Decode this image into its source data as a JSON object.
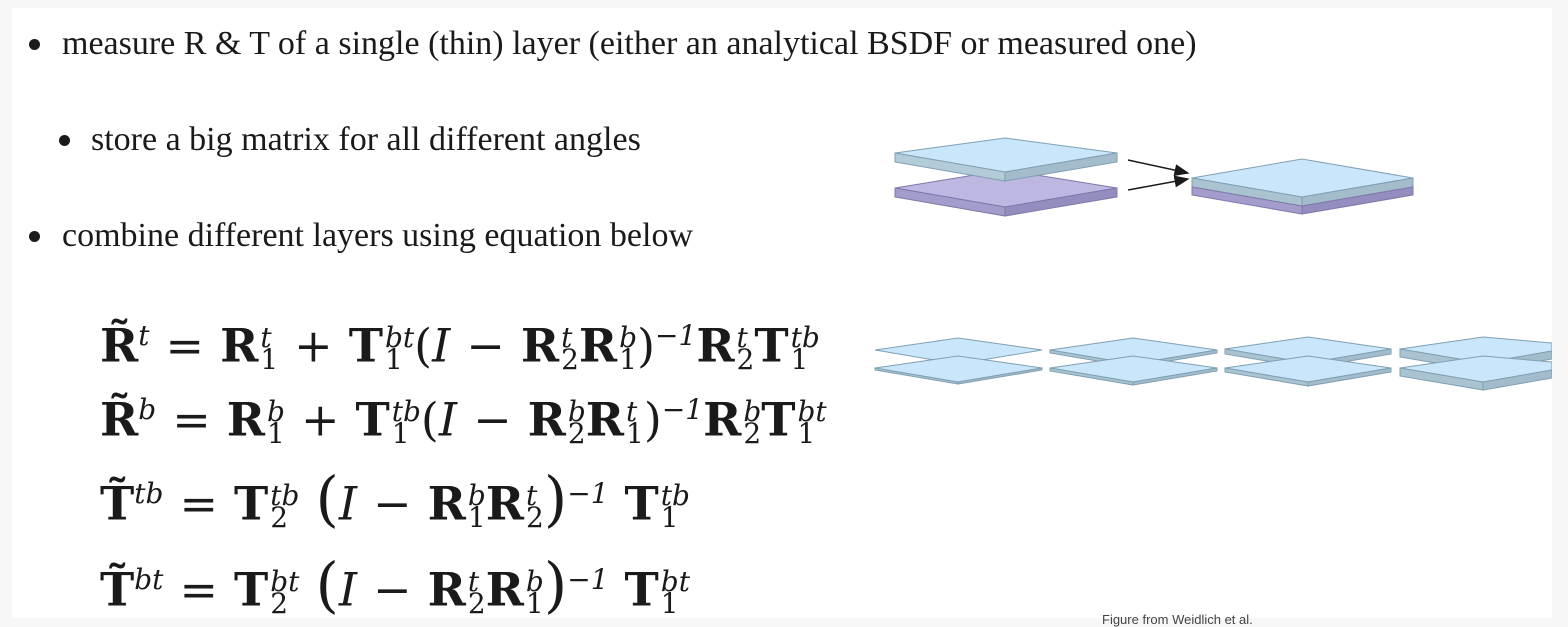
{
  "bullets": [
    "measure R & T of a single (thin) layer (either an analytical BSDF or measured one)",
    "store a big matrix for all different angles",
    "combine different layers using equation below"
  ],
  "equations": {
    "eq1": {
      "lhs": "R̃",
      "lhs_sup": "t",
      "rhs": [
        "R",
        "1",
        "t",
        "T",
        "1",
        "bt",
        "(I − ",
        "R",
        "2",
        "t",
        "R",
        "1",
        "b",
        ")",
        "−1",
        "R",
        "2",
        "t",
        "T",
        "1",
        "tb"
      ]
    },
    "eq2": {
      "lhs": "R̃",
      "lhs_sup": "b"
    },
    "eq3": {
      "lhs": "T̃",
      "lhs_sup": "tb"
    },
    "eq4": {
      "lhs": "T̃",
      "lhs_sup": "bt"
    }
  },
  "caption": "Figure from Weidlich et al.",
  "colors": {
    "layer_top": "#c9e6fa",
    "layer_top_edge": "#a6bfcc",
    "layer_bottom": "#bdb8e2",
    "layer_bottom_edge": "#9f98c8"
  }
}
